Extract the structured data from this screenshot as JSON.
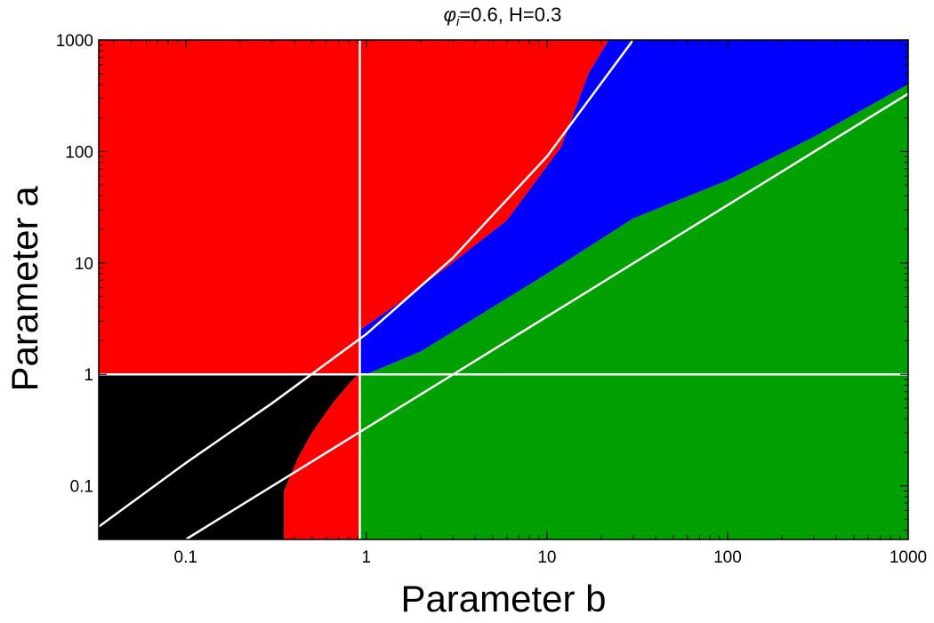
{
  "chart_data": {
    "type": "heatmap",
    "title": "=0.6, H=0.3",
    "title_symbol": "φ",
    "title_subscript": "i",
    "xlabel": "Parameter b",
    "ylabel": "Parameter a",
    "x_scale": "log",
    "y_scale": "log",
    "xlim": [
      0.033,
      1000
    ],
    "ylim": [
      0.033,
      1000
    ],
    "x_ticks": [
      0.1,
      1,
      10,
      100,
      1000
    ],
    "x_tick_labels": [
      "0.1",
      "1",
      "10",
      "100",
      "1000"
    ],
    "y_ticks": [
      0.1,
      1,
      10,
      100,
      1000
    ],
    "y_tick_labels": [
      "0.1",
      "1",
      "10",
      "100",
      "1000"
    ],
    "colors": {
      "red": "#ff0000",
      "blue": "#0000ff",
      "green": "#00a000",
      "black": "#000000",
      "lines": "#ffffff"
    },
    "regions": [
      {
        "color": "red",
        "boundary": [
          [
            0.033,
            1
          ],
          [
            0.92,
            1
          ],
          [
            0.92,
            1000
          ],
          [
            0.033,
            1000
          ]
        ]
      },
      {
        "color": "red",
        "boundary": [
          [
            0.92,
            1
          ],
          [
            0.92,
            2.5
          ],
          [
            1.5,
            4.3
          ],
          [
            3,
            10
          ],
          [
            6,
            24
          ],
          [
            12,
            110
          ],
          [
            17,
            500
          ],
          [
            22,
            1000
          ],
          [
            0.92,
            1000
          ]
        ]
      },
      {
        "color": "blue",
        "boundary": [
          [
            0.92,
            1
          ],
          [
            0.92,
            2.5
          ],
          [
            1.5,
            4.3
          ],
          [
            3,
            10
          ],
          [
            6,
            24
          ],
          [
            12,
            110
          ],
          [
            17,
            500
          ],
          [
            22,
            1000
          ],
          [
            1000,
            1000
          ],
          [
            1000,
            400
          ],
          [
            300,
            135
          ],
          [
            100,
            55
          ],
          [
            30,
            25
          ],
          [
            10,
            8
          ],
          [
            5,
            4
          ],
          [
            2,
            1.6
          ],
          [
            1,
            1
          ]
        ]
      },
      {
        "color": "green",
        "boundary": [
          [
            0.92,
            0.033
          ],
          [
            1000,
            0.033
          ],
          [
            1000,
            400
          ],
          [
            300,
            135
          ],
          [
            100,
            55
          ],
          [
            30,
            25
          ],
          [
            10,
            8
          ],
          [
            5,
            4
          ],
          [
            2,
            1.6
          ],
          [
            1,
            1
          ],
          [
            0.92,
            1
          ]
        ]
      },
      {
        "color": "red",
        "boundary": [
          [
            0.35,
            0.033
          ],
          [
            0.92,
            0.033
          ],
          [
            0.92,
            1
          ],
          [
            0.9,
            1
          ],
          [
            0.8,
            0.82
          ],
          [
            0.65,
            0.55
          ],
          [
            0.5,
            0.3
          ],
          [
            0.42,
            0.18
          ],
          [
            0.35,
            0.09
          ]
        ]
      },
      {
        "color": "black",
        "boundary": [
          [
            0.033,
            0.033
          ],
          [
            0.35,
            0.033
          ],
          [
            0.35,
            0.09
          ],
          [
            0.42,
            0.18
          ],
          [
            0.5,
            0.3
          ],
          [
            0.65,
            0.55
          ],
          [
            0.8,
            0.82
          ],
          [
            0.9,
            1
          ],
          [
            0.033,
            1
          ]
        ]
      }
    ],
    "lines": [
      {
        "color": "lines",
        "kind": "horizontal",
        "y": 1
      },
      {
        "color": "lines",
        "kind": "vertical",
        "x": 0.92
      },
      {
        "color": "lines",
        "kind": "curve",
        "points": [
          [
            0.033,
            0.043
          ],
          [
            0.1,
            0.16
          ],
          [
            0.3,
            0.55
          ],
          [
            1,
            2.3
          ],
          [
            3,
            11
          ],
          [
            10,
            90
          ],
          [
            30,
            1000
          ]
        ]
      },
      {
        "color": "lines",
        "kind": "curve",
        "points": [
          [
            0.1,
            0.033
          ],
          [
            1,
            0.33
          ],
          [
            10,
            3.3
          ],
          [
            100,
            33
          ],
          [
            1000,
            330
          ]
        ]
      }
    ]
  }
}
